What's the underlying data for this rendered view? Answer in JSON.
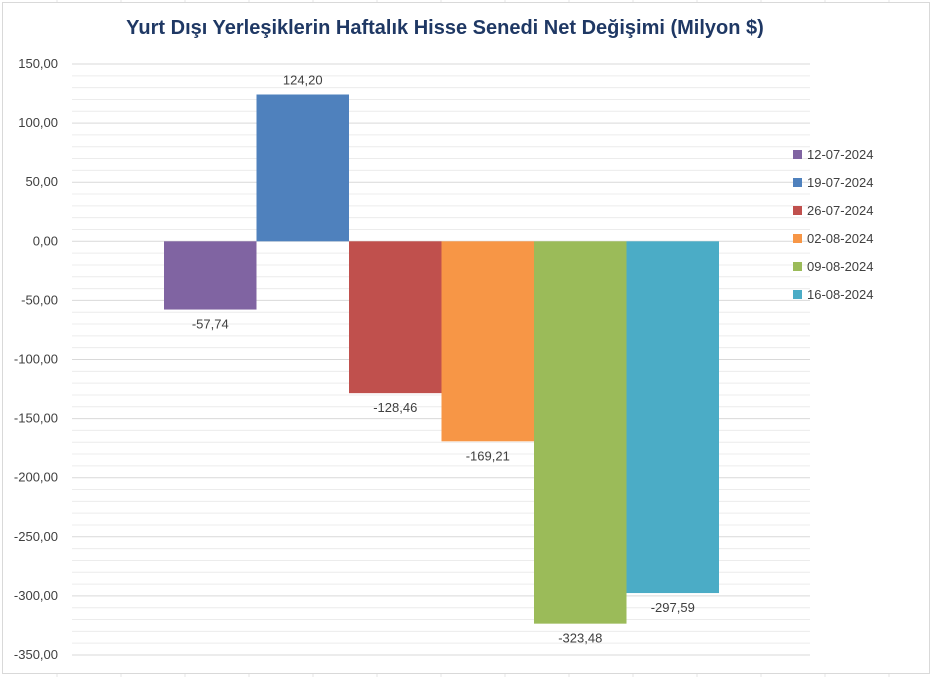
{
  "chart_data": {
    "type": "bar",
    "title": "Yurt Dışı Yerleşiklerin Haftalık Hisse Senedi Net Değişimi (Milyon $)",
    "xlabel": "",
    "ylabel": "",
    "ylim": [
      -350,
      150
    ],
    "yticks": [
      "150,00",
      "100,00",
      "50,00",
      "0,00",
      "-50,00",
      "-100,00",
      "-150,00",
      "-200,00",
      "-250,00",
      "-300,00",
      "-350,00"
    ],
    "grid": true,
    "legend_position": "right",
    "series": [
      {
        "name": "12-07-2024",
        "value": -57.74,
        "label": "-57,74",
        "color": "#8064a2"
      },
      {
        "name": "19-07-2024",
        "value": 124.2,
        "label": "124,20",
        "color": "#4f81bd"
      },
      {
        "name": "26-07-2024",
        "value": -128.46,
        "label": "-128,46",
        "color": "#c0504d"
      },
      {
        "name": "02-08-2024",
        "value": -169.21,
        "label": "-169,21",
        "color": "#f79646"
      },
      {
        "name": "09-08-2024",
        "value": -323.48,
        "label": "-323,48",
        "color": "#9bbb59"
      },
      {
        "name": "16-08-2024",
        "value": -297.59,
        "label": "-297,59",
        "color": "#4bacc6"
      }
    ]
  }
}
